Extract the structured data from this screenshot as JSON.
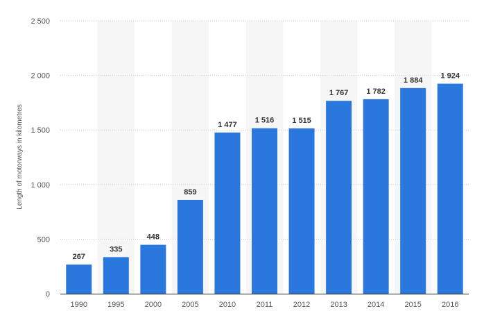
{
  "chart_data": {
    "type": "bar",
    "categories": [
      "1990",
      "1995",
      "2000",
      "2005",
      "2010",
      "2011",
      "2012",
      "2013",
      "2014",
      "2015",
      "2016"
    ],
    "values": [
      267,
      335,
      448,
      859,
      1477,
      1516,
      1515,
      1767,
      1782,
      1884,
      1924
    ],
    "value_labels": [
      "267",
      "335",
      "448",
      "859",
      "1 477",
      "1 516",
      "1 515",
      "1 767",
      "1 782",
      "1 884",
      "1 924"
    ],
    "ylabel": "Length of motorways in kilometres",
    "ylim": [
      0,
      2500
    ],
    "y_ticks": [
      0,
      500,
      1000,
      1500,
      2000,
      2500
    ],
    "y_tick_labels": [
      "0",
      "500",
      "1 000",
      "1 500",
      "2 000",
      "2 500"
    ],
    "grid": true,
    "colors": {
      "bar": "#2a78dd",
      "band": "#f6f6f6",
      "grid": "#c8c8c8",
      "axis": "#222222"
    }
  }
}
